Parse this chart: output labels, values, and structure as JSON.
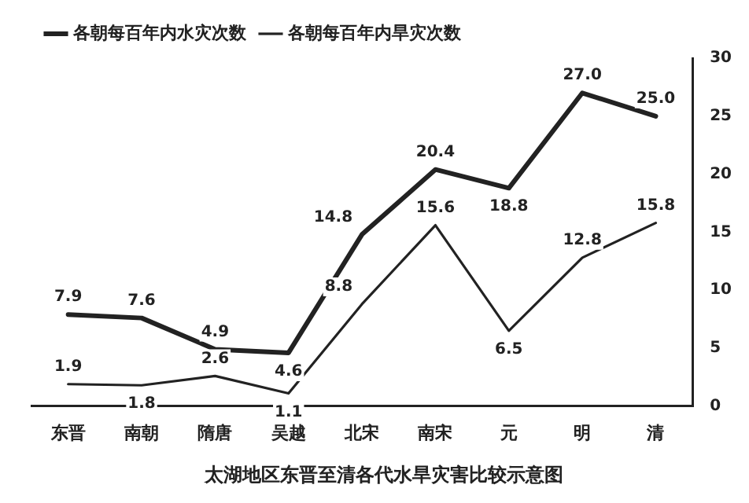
{
  "chart_data": {
    "type": "line",
    "title": "太湖地区东晋至清各代水旱灾害比较示意图",
    "categories": [
      "东晋",
      "南朝",
      "隋唐",
      "吴越",
      "北宋",
      "南宋",
      "元",
      "明",
      "清"
    ],
    "series": [
      {
        "name": "各朝每百年内水灾次数",
        "color": "#222222",
        "values": [
          7.9,
          7.6,
          4.9,
          4.6,
          14.8,
          20.4,
          18.8,
          27.0,
          25.0
        ],
        "value_labels": [
          "7.9",
          "7.6",
          "4.9",
          "4.6",
          "14.8",
          "20.4",
          "18.8",
          "27.0",
          "25.0"
        ]
      },
      {
        "name": "各朝每百年内旱灾次数",
        "color": "#222222",
        "values": [
          1.9,
          1.8,
          2.6,
          1.1,
          8.8,
          15.6,
          6.5,
          12.8,
          15.8
        ],
        "value_labels": [
          "1.9",
          "1.8",
          "2.6",
          "1.1",
          "8.8",
          "15.6",
          "6.5",
          "12.8",
          "15.8"
        ]
      }
    ],
    "ylim": [
      0,
      30
    ],
    "yticks": [
      0,
      5,
      10,
      15,
      20,
      25,
      30
    ],
    "grid": false,
    "legend": "top left",
    "marker": "none",
    "line_style": "solid"
  }
}
